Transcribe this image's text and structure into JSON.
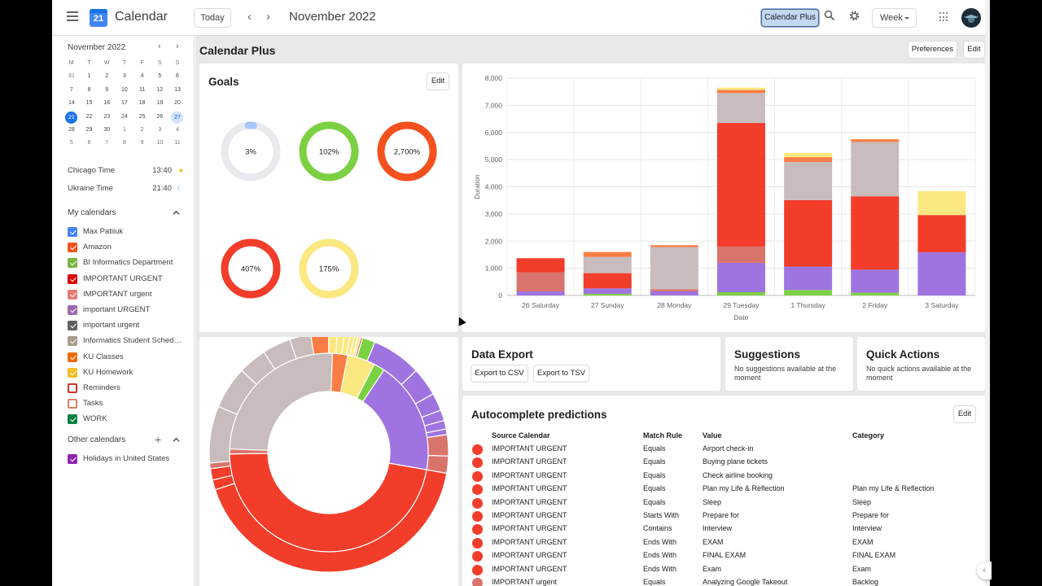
{
  "header": {
    "app_title": "Calendar",
    "logo_text": "21",
    "today_label": "Today",
    "current_period": "November 2022",
    "calendar_plus_label": "Calendar Plus",
    "view_label": "Week"
  },
  "sidebar": {
    "mini_month": "November 2022",
    "weekdays": [
      "M",
      "T",
      "W",
      "T",
      "F",
      "S",
      "S"
    ],
    "weeks": [
      [
        "31",
        "1",
        "2",
        "3",
        "4",
        "5",
        "6"
      ],
      [
        "7",
        "8",
        "9",
        "10",
        "11",
        "12",
        "13"
      ],
      [
        "14",
        "15",
        "16",
        "17",
        "18",
        "19",
        "20"
      ],
      [
        "21",
        "22",
        "23",
        "24",
        "25",
        "26",
        "27"
      ],
      [
        "28",
        "29",
        "30",
        "1",
        "2",
        "3",
        "4"
      ],
      [
        "5",
        "6",
        "7",
        "8",
        "9",
        "10",
        "11"
      ]
    ],
    "selected_day": "21",
    "highlighted_day": "27",
    "timezones": [
      {
        "label": "Chicago Time",
        "time": "13:40",
        "icon": "sun-icon"
      },
      {
        "label": "Ukraine Time",
        "time": "21:40",
        "icon": "moon-icon"
      }
    ],
    "my_calendars_title": "My calendars",
    "my_calendars": [
      {
        "label": "Max Patiiuk",
        "color": "#4285f4",
        "checked": true
      },
      {
        "label": "Amazon",
        "color": "#f4511e",
        "checked": true
      },
      {
        "label": "BI Informatics Department",
        "color": "#7cb342",
        "checked": true
      },
      {
        "label": "IMPORTANT URGENT",
        "color": "#d50000",
        "checked": true
      },
      {
        "label": "IMPORTANT urgent",
        "color": "#e67c73",
        "checked": true
      },
      {
        "label": "important URGENT",
        "color": "#9e69af",
        "checked": true
      },
      {
        "label": "important urgent",
        "color": "#616161",
        "checked": true
      },
      {
        "label": "Informatics Student Sched…",
        "color": "#a79b8e",
        "checked": true
      },
      {
        "label": "KU Classes",
        "color": "#ef6c00",
        "checked": true
      },
      {
        "label": "KU Homework",
        "color": "#f6bf26",
        "checked": true
      },
      {
        "label": "Reminders",
        "color": "#c0392b",
        "checked": false
      },
      {
        "label": "Tasks",
        "color": "#d4826a",
        "checked": false
      },
      {
        "label": "WORK",
        "color": "#0b8043",
        "checked": true
      }
    ],
    "other_calendars_title": "Other calendars",
    "other_calendars": [
      {
        "label": "Holidays in United States",
        "color": "#8e24aa",
        "checked": true
      }
    ]
  },
  "main": {
    "title": "Calendar Plus",
    "preferences_label": "Preferences",
    "edit_label": "Edit",
    "goals": {
      "title": "Goals",
      "edit_label": "Edit",
      "items": [
        {
          "label": "3%",
          "fraction": 0.03,
          "color": "#a8c7fa"
        },
        {
          "label": "102%",
          "fraction": 1.0,
          "color": "#7cd142"
        },
        {
          "label": "2,700%",
          "fraction": 1.0,
          "color": "#f4511e"
        },
        {
          "label": "407%",
          "fraction": 1.0,
          "color": "#f23d2a"
        },
        {
          "label": "175%",
          "fraction": 1.0,
          "color": "#fbe881"
        }
      ]
    },
    "data_export": {
      "title": "Data Export",
      "csv_label": "Export to CSV",
      "tsv_label": "Export to TSV"
    },
    "suggestions": {
      "title": "Suggestions",
      "text": "No suggestions available at the moment"
    },
    "quick_actions": {
      "title": "Quick Actions",
      "text": "No quick actions available at the moment"
    },
    "autocomplete": {
      "title": "Autocomplete predictions",
      "edit_label": "Edit",
      "headers": [
        "Source Calendar",
        "Match Rule",
        "Value",
        "Category"
      ],
      "rows": [
        {
          "color": "#f23d2a",
          "source": "IMPORTANT URGENT",
          "rule": "Equals",
          "value": "Airport check-in",
          "category": ""
        },
        {
          "color": "#f23d2a",
          "source": "IMPORTANT URGENT",
          "rule": "Equals",
          "value": "Buying plane tickets",
          "category": ""
        },
        {
          "color": "#f23d2a",
          "source": "IMPORTANT URGENT",
          "rule": "Equals",
          "value": "Check airline booking",
          "category": ""
        },
        {
          "color": "#f23d2a",
          "source": "IMPORTANT URGENT",
          "rule": "Equals",
          "value": "Plan my Life & Reflection",
          "category": "Plan my Life & Reflection"
        },
        {
          "color": "#f23d2a",
          "source": "IMPORTANT URGENT",
          "rule": "Equals",
          "value": "Sleep",
          "category": "Sleep"
        },
        {
          "color": "#f23d2a",
          "source": "IMPORTANT URGENT",
          "rule": "Starts With",
          "value": "Prepare for",
          "category": "Prepare for"
        },
        {
          "color": "#f23d2a",
          "source": "IMPORTANT URGENT",
          "rule": "Contains",
          "value": "Interview",
          "category": "Interview"
        },
        {
          "color": "#f23d2a",
          "source": "IMPORTANT URGENT",
          "rule": "Ends With",
          "value": "EXAM",
          "category": "EXAM"
        },
        {
          "color": "#f23d2a",
          "source": "IMPORTANT URGENT",
          "rule": "Ends With",
          "value": "FINAL EXAM",
          "category": "FINAL EXAM"
        },
        {
          "color": "#f23d2a",
          "source": "IMPORTANT URGENT",
          "rule": "Ends With",
          "value": "Exam",
          "category": "Exam"
        },
        {
          "color": "#d9746c",
          "source": "IMPORTANT urgent",
          "rule": "Equals",
          "value": "Analyzing Google Takeout",
          "category": "Backlog"
        }
      ]
    }
  },
  "chart_data": {
    "type": "bar",
    "stacked": true,
    "categories": [
      "26 Saturday",
      "27 Sunday",
      "28 Monday",
      "29 Tuesday",
      "1 Thursday",
      "2 Friday",
      "3 Saturday"
    ],
    "xlabel": "Date",
    "ylabel": "Duration",
    "ylim": [
      0,
      8000
    ],
    "yticks": [
      0,
      1000,
      2000,
      3000,
      4000,
      5000,
      6000,
      7000,
      8000
    ],
    "grid": true,
    "series": [
      {
        "color": "#7cd142",
        "values": [
          0,
          60,
          0,
          120,
          200,
          100,
          0
        ]
      },
      {
        "color": "#9f74e0",
        "values": [
          150,
          200,
          150,
          1080,
          860,
          850,
          1590
        ]
      },
      {
        "color": "#d9746c",
        "values": [
          60,
          0,
          80,
          600,
          0,
          0,
          0
        ]
      },
      {
        "color": "#f23d2a",
        "values": [
          0,
          560,
          0,
          4550,
          2450,
          2700,
          1370
        ]
      },
      {
        "color": "#d9746c",
        "values": [
          640,
          0,
          0,
          0,
          0,
          0,
          0
        ]
      },
      {
        "color": "#f23d2a",
        "values": [
          520,
          0,
          0,
          0,
          0,
          0,
          0
        ]
      },
      {
        "color": "#c8bcbc",
        "values": [
          0,
          600,
          1550,
          1100,
          1400,
          2000,
          0
        ]
      },
      {
        "color": "#fb7d46",
        "values": [
          0,
          180,
          70,
          120,
          180,
          100,
          0
        ]
      },
      {
        "color": "#fbe881",
        "values": [
          0,
          0,
          0,
          80,
          160,
          0,
          880
        ]
      }
    ]
  },
  "sunburst": {
    "inner": [
      {
        "color": "#f23d2a",
        "value": 470
      },
      {
        "color": "#d9746c",
        "value": 8
      },
      {
        "color": "#c8bcbc",
        "value": 250
      },
      {
        "color": "#fb7d46",
        "value": 25
      },
      {
        "color": "#fbe881",
        "value": 45
      },
      {
        "color": "#7cd142",
        "value": 18
      },
      {
        "color": "#9f74e0",
        "value": 184
      }
    ],
    "outer": [
      {
        "color": "#f23d2a",
        "value": 440
      },
      {
        "color": "#f23d2a",
        "value": 14
      },
      {
        "color": "#f23d2a",
        "value": 16
      },
      {
        "color": "#d9746c",
        "value": 8
      },
      {
        "color": "#c8bcbc",
        "value": 80
      },
      {
        "color": "#c8bcbc",
        "value": 60
      },
      {
        "color": "#c8bcbc",
        "value": 40
      },
      {
        "color": "#c8bcbc",
        "value": 40
      },
      {
        "color": "#c8bcbc",
        "value": 30
      },
      {
        "color": "#fb7d46",
        "value": 25
      },
      {
        "color": "#fbe881",
        "value": 12
      },
      {
        "color": "#fbe881",
        "value": 10
      },
      {
        "color": "#fbe881",
        "value": 8
      },
      {
        "color": "#fbe881",
        "value": 6
      },
      {
        "color": "#fbe881",
        "value": 5
      },
      {
        "color": "#fbe881",
        "value": 4
      },
      {
        "color": "#d9746c",
        "value": 3
      },
      {
        "color": "#7cd142",
        "value": 18
      },
      {
        "color": "#9f74e0",
        "value": 70
      },
      {
        "color": "#9f74e0",
        "value": 40
      },
      {
        "color": "#9f74e0",
        "value": 25
      },
      {
        "color": "#9f74e0",
        "value": 15
      },
      {
        "color": "#9f74e0",
        "value": 12
      },
      {
        "color": "#9f74e0",
        "value": 8
      },
      {
        "color": "#d9746c",
        "value": 30
      },
      {
        "color": "#d9746c",
        "value": 24
      }
    ]
  }
}
